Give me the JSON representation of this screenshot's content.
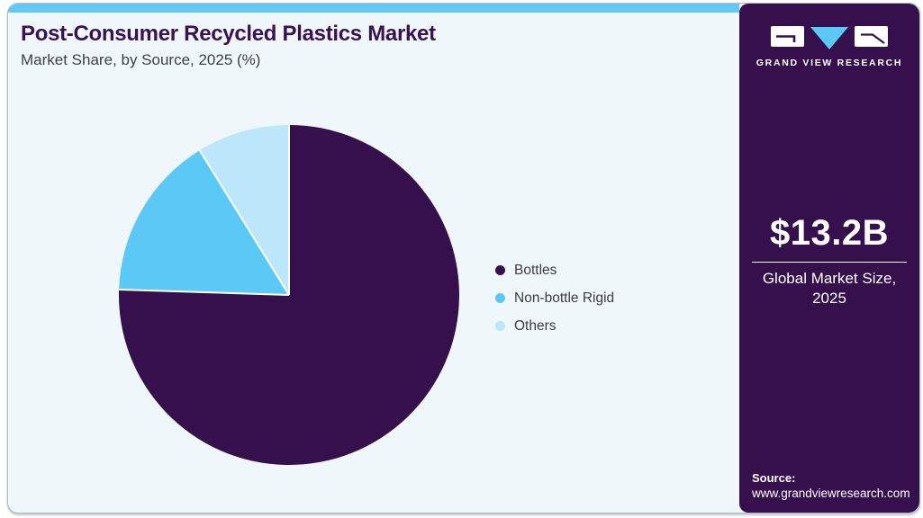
{
  "header": {
    "title": "Post-Consumer Recycled Plastics Market",
    "subtitle": "Market Share, by Source, 2025 (%)"
  },
  "chart_data": {
    "type": "pie",
    "title": "Post-Consumer Recycled Plastics Market Share, by Source, 2025 (%)",
    "categories": [
      "Bottles",
      "Non-bottle Rigid",
      "Others"
    ],
    "values": [
      75.5,
      15.7,
      8.8
    ],
    "unit": "%",
    "colors": [
      "#36104D",
      "#5BC8F5",
      "#BCE7FA"
    ],
    "legend_position": "right",
    "start_angle_deg": 0,
    "direction": "clockwise",
    "separator_color": "#FFFFFF"
  },
  "sidebar": {
    "brand": "GRAND VIEW RESEARCH",
    "market_size": {
      "value": "$13.2B",
      "label_line1": "Global Market Size,",
      "label_line2": "2025"
    },
    "source": {
      "label": "Source:",
      "url": "www.grandviewresearch.com"
    }
  },
  "colors": {
    "card_background": "#F0F7FB",
    "top_strip": "#62C9F2",
    "sidebar_background": "#36104D",
    "title_text": "#3A1153",
    "body_text": "#3C3C43",
    "sidebar_text": "#FFFFFF"
  }
}
